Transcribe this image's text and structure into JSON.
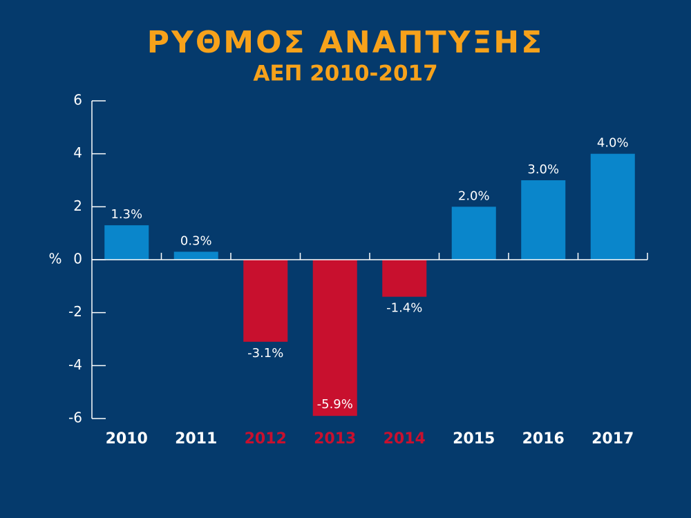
{
  "chart_data": {
    "type": "bar",
    "title": "ΡΥΘΜΟΣ ΑΝΑΠΤΥΞΗΣ",
    "subtitle": "ΑΕΠ 2010-2017",
    "ylabel": "%",
    "categories": [
      "2010",
      "2011",
      "2012",
      "2013",
      "2014",
      "2015",
      "2016",
      "2017"
    ],
    "values": [
      1.3,
      0.3,
      -3.1,
      -5.9,
      -1.4,
      2.0,
      3.0,
      4.0
    ],
    "value_labels": [
      "1.3%",
      "0.3%",
      "-3.1%",
      "-5.9%",
      "-1.4%",
      "2.0%",
      "3.0%",
      "4.0%"
    ],
    "colors": [
      "#0a86cb",
      "#0a86cb",
      "#c8102e",
      "#c8102e",
      "#c8102e",
      "#0a86cb",
      "#0a86cb",
      "#0a86cb"
    ],
    "ylim": [
      -6,
      6
    ],
    "yticks": [
      -6,
      -4,
      -2,
      0,
      2,
      4,
      6
    ],
    "grid": false
  }
}
